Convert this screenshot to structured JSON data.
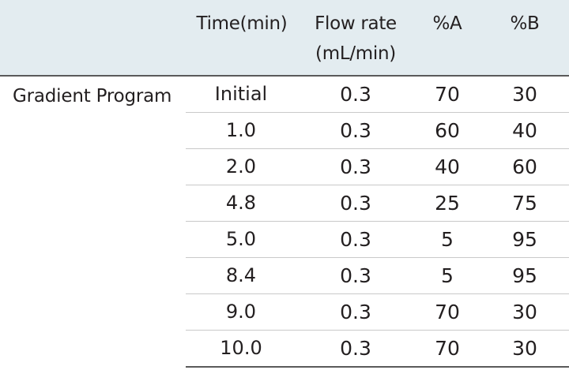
{
  "header": {
    "time": "Time(min)",
    "flow_line1": "Flow rate",
    "flow_line2": "(mL/min)",
    "a": "%A",
    "b": "%B"
  },
  "section_label": "Gradient Program",
  "rows": [
    {
      "time": "Initial",
      "flow": "0.3",
      "a": "70",
      "b": "30"
    },
    {
      "time": "1.0",
      "flow": "0.3",
      "a": "60",
      "b": "40"
    },
    {
      "time": "2.0",
      "flow": "0.3",
      "a": "40",
      "b": "60"
    },
    {
      "time": "4.8",
      "flow": "0.3",
      "a": "25",
      "b": "75"
    },
    {
      "time": "5.0",
      "flow": "0.3",
      "a": "5",
      "b": "95"
    },
    {
      "time": "8.4",
      "flow": "0.3",
      "a": "5",
      "b": "95"
    },
    {
      "time": "9.0",
      "flow": "0.3",
      "a": "70",
      "b": "30"
    },
    {
      "time": "10.0",
      "flow": "0.3",
      "a": "70",
      "b": "30"
    }
  ]
}
